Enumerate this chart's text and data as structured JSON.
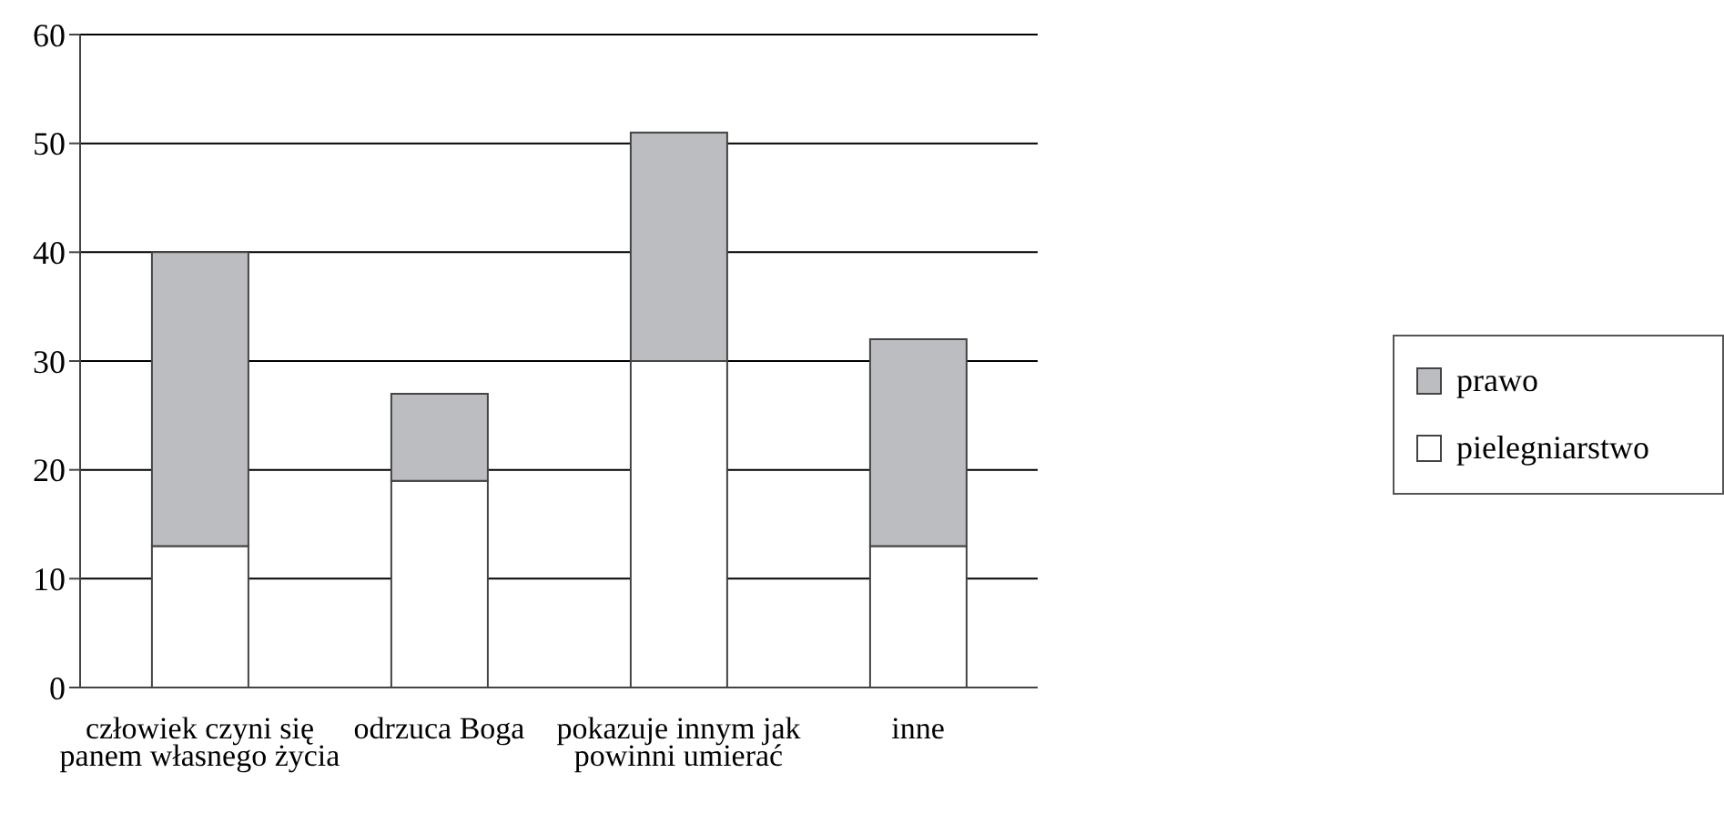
{
  "chart_data": {
    "type": "bar",
    "stacked": true,
    "categories": [
      "człowiek czyni się panem własnego życia",
      "odrzuca Boga",
      "pokazuje innym jak powinni umierać",
      "inne"
    ],
    "series": [
      {
        "name": "pielegniarstwo",
        "color": "#ffffff",
        "values": [
          13,
          19,
          30,
          13
        ]
      },
      {
        "name": "prawo",
        "color": "#bcbdc0",
        "values": [
          27,
          8,
          21,
          19
        ]
      }
    ],
    "ylim": [
      0,
      60
    ],
    "yticks": [
      0,
      10,
      20,
      30,
      40,
      50,
      60
    ],
    "grid": "y",
    "legend": "right"
  }
}
